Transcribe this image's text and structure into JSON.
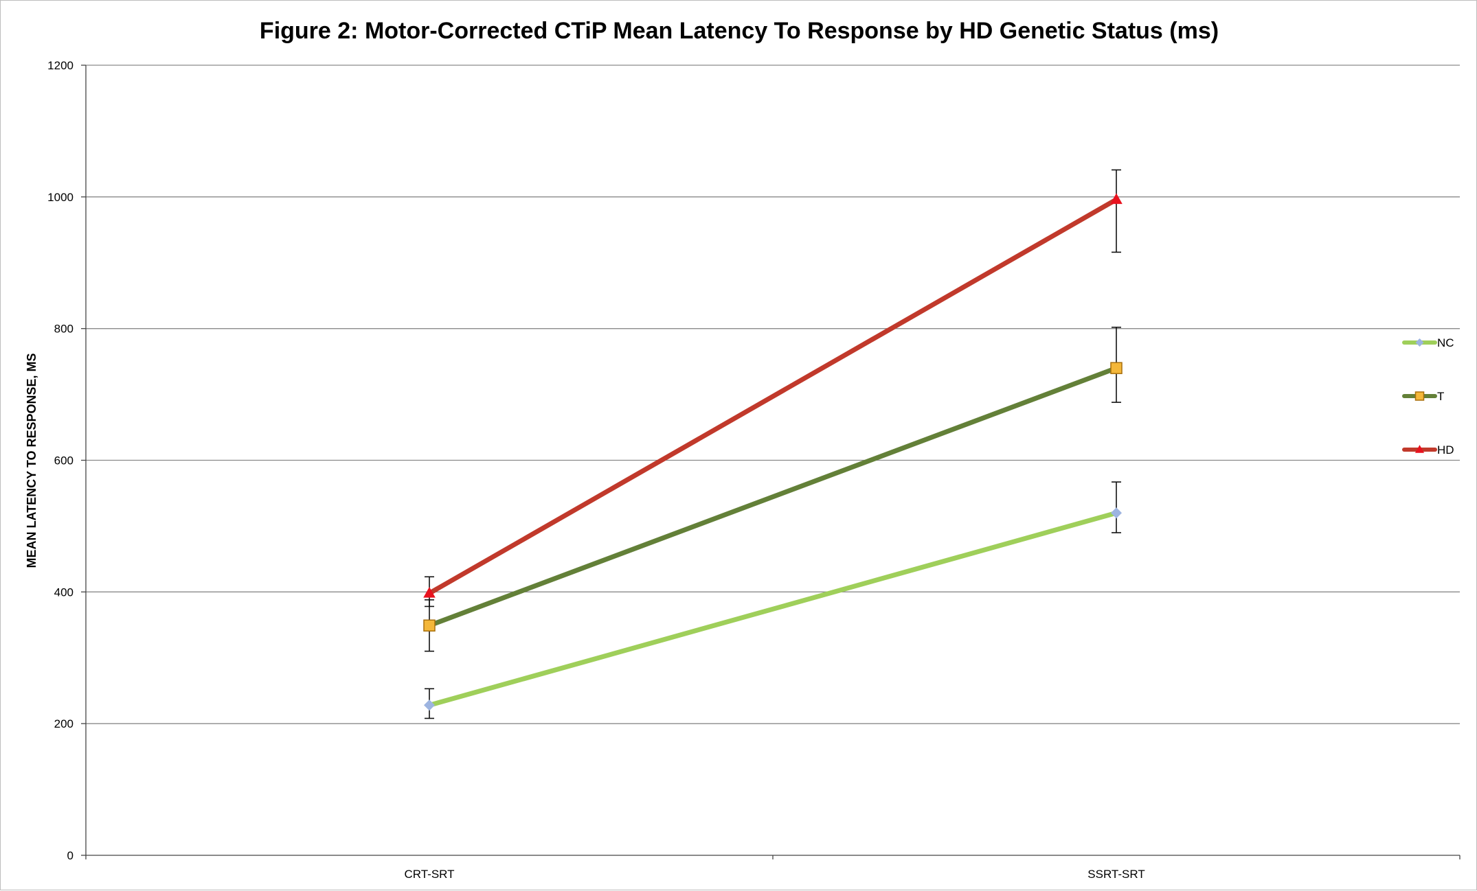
{
  "chart_data": {
    "type": "line",
    "title": "Figure 2: Motor-Corrected CTiP Mean Latency To Response by HD Genetic Status (ms)",
    "ylabel": "MEAN LATENCY TO RESPONSE, MS",
    "xlabel": "",
    "categories": [
      "CRT-SRT",
      "SSRT-SRT"
    ],
    "ylim": [
      0,
      1200
    ],
    "yticks": [
      0,
      200,
      400,
      600,
      800,
      1000,
      1200
    ],
    "grid": true,
    "legend": "right",
    "series": [
      {
        "name": "NC",
        "values": [
          228,
          520
        ],
        "error_low": [
          208,
          490
        ],
        "error_high": [
          253,
          567
        ],
        "color": "#9fcf5a",
        "marker": "diamond",
        "marker_color": "#9db4e0"
      },
      {
        "name": "T",
        "values": [
          349,
          740
        ],
        "error_low": [
          310,
          688
        ],
        "error_high": [
          388,
          802
        ],
        "color": "#638038",
        "marker": "square",
        "marker_color": "#f4b73a"
      },
      {
        "name": "HD",
        "values": [
          398,
          996
        ],
        "error_low": [
          378,
          916
        ],
        "error_high": [
          423,
          1041
        ],
        "color": "#c1392b",
        "marker": "triangle",
        "marker_color": "#e8121e"
      }
    ]
  }
}
